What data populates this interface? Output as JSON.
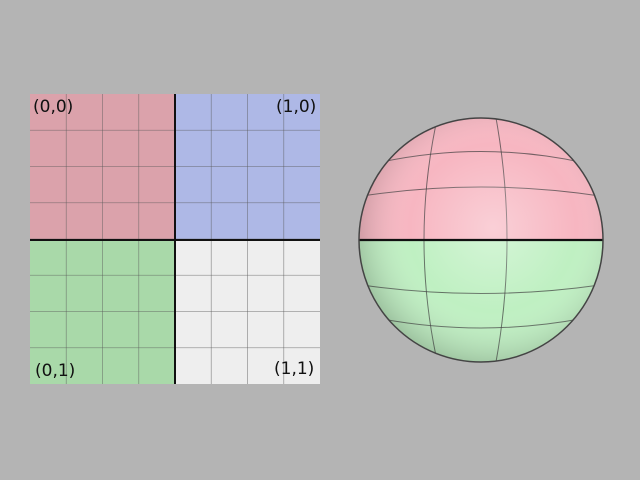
{
  "texture_map": {
    "quadrants": [
      {
        "label": "(0,0)",
        "color": "#dba2ab"
      },
      {
        "label": "(1,0)",
        "color": "#aeb8e6"
      },
      {
        "label": "(0,1)",
        "color": "#a9d9a9"
      },
      {
        "label": "(1,1)",
        "color": "#eeeeee"
      }
    ],
    "grid_divisions_per_quadrant": 4
  },
  "sphere": {
    "upper_color": "#f7b6c1",
    "lower_color": "#bff0c2"
  },
  "background_color": "#b4b4b4"
}
